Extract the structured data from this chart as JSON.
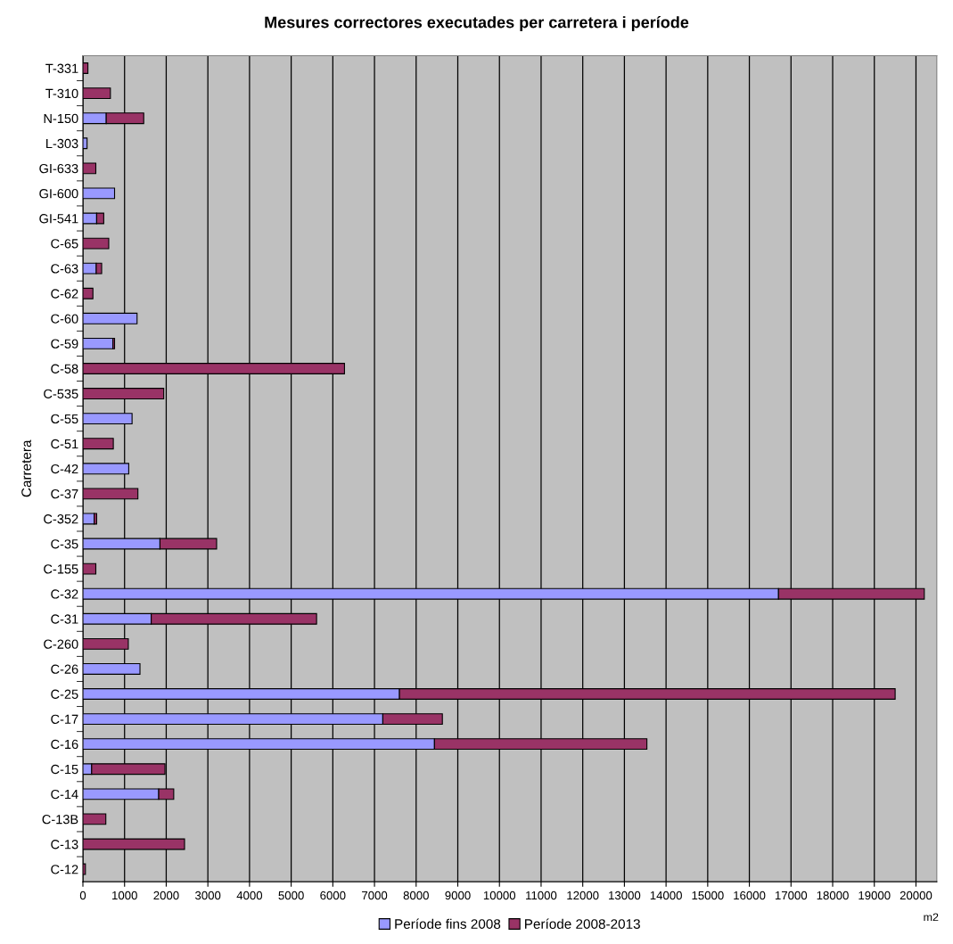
{
  "chart_data": {
    "type": "bar",
    "orientation": "horizontal",
    "stacked": true,
    "title": "Mesures correctores executades per carretera i període",
    "ylabel": "Carretera",
    "annotations": [
      "m2"
    ],
    "categories": [
      "T-331",
      "T-310",
      "N-150",
      "L-303",
      "GI-633",
      "GI-600",
      "GI-541",
      "C-65",
      "C-63",
      "C-62",
      "C-60",
      "C-59",
      "C-58",
      "C-535",
      "C-55",
      "C-51",
      "C-42",
      "C-37",
      "C-352",
      "C-35",
      "C-155",
      "C-32",
      "C-31",
      "C-260",
      "C-26",
      "C-25",
      "C-17",
      "C-16",
      "C-15",
      "C-14",
      "C-13B",
      "C-13",
      "C-12"
    ],
    "series": [
      {
        "name": "Període fins 2008",
        "color": "#9999ff",
        "values": [
          null,
          null,
          560,
          100,
          null,
          760,
          330,
          null,
          320,
          null,
          1300,
          720,
          null,
          null,
          1180,
          null,
          1100,
          null,
          270,
          1850,
          null,
          16700,
          1640,
          null,
          1370,
          7600,
          7200,
          8440,
          210,
          1820,
          null,
          null,
          null
        ]
      },
      {
        "name": "Període 2008-2013",
        "color": "#993366",
        "values": [
          120,
          660,
          900,
          null,
          310,
          null,
          170,
          620,
          130,
          240,
          null,
          40,
          6280,
          1940,
          null,
          730,
          null,
          1320,
          60,
          1360,
          310,
          3500,
          3970,
          1090,
          null,
          11900,
          1430,
          5100,
          1760,
          360,
          550,
          2440,
          60
        ]
      }
    ],
    "xlim": [
      0,
      20500
    ],
    "xticks": [
      0,
      1000,
      2000,
      3000,
      4000,
      5000,
      6000,
      7000,
      8000,
      9000,
      10000,
      11000,
      12000,
      13000,
      14000,
      15000,
      16000,
      17000,
      18000,
      19000,
      20000
    ],
    "grid": "x",
    "legend": "bottom"
  }
}
